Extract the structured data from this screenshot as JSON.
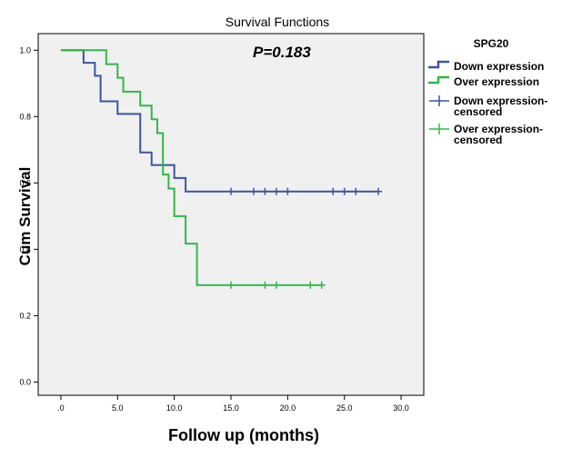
{
  "chart_data": {
    "type": "line",
    "title": "Survival Functions",
    "annotation": "P=0.183",
    "xlabel": "Follow up (months)",
    "ylabel": "Cum Survival",
    "xlim": [
      -2,
      32
    ],
    "ylim": [
      -0.04,
      1.05
    ],
    "x_ticks": [
      0,
      5,
      10,
      15,
      20,
      25,
      30
    ],
    "x_tick_labels": [
      ".0",
      "5.0",
      "10.0",
      "15.0",
      "20.0",
      "25.0",
      "30.0"
    ],
    "y_ticks": [
      0.0,
      0.2,
      0.4,
      0.6,
      0.8,
      1.0
    ],
    "y_tick_labels": [
      "0.0",
      "0.2",
      "0.4",
      "0.6",
      "0.8",
      "1.0"
    ],
    "grid": false,
    "legend_title": "SPG20",
    "legend_position": "right",
    "legend": [
      {
        "label": "Down expression",
        "kind": "step",
        "color": "#3a54a4"
      },
      {
        "label": "Over expression",
        "kind": "step",
        "color": "#2fb847"
      },
      {
        "label": "Down expression-censored",
        "kind": "censor",
        "color": "#3a54a4"
      },
      {
        "label": "Over expression-censored",
        "kind": "censor",
        "color": "#2fb847"
      }
    ],
    "series": [
      {
        "name": "Down expression",
        "color": "#3a54a4",
        "x": [
          0,
          2,
          3,
          3.5,
          5,
          7,
          8,
          10,
          11,
          28
        ],
        "y": [
          1.0,
          0.962,
          0.923,
          0.846,
          0.808,
          0.692,
          0.654,
          0.615,
          0.574,
          0.574
        ],
        "censored": [
          {
            "x": 15,
            "y": 0.574
          },
          {
            "x": 17,
            "y": 0.574
          },
          {
            "x": 18,
            "y": 0.574
          },
          {
            "x": 19,
            "y": 0.574
          },
          {
            "x": 20,
            "y": 0.574
          },
          {
            "x": 24,
            "y": 0.574
          },
          {
            "x": 25,
            "y": 0.574
          },
          {
            "x": 26,
            "y": 0.574
          },
          {
            "x": 28,
            "y": 0.574
          }
        ]
      },
      {
        "name": "Over expression",
        "color": "#2fb847",
        "x": [
          0,
          4,
          5,
          5.5,
          7,
          8,
          8.5,
          9,
          9.5,
          10,
          11,
          12,
          23
        ],
        "y": [
          1.0,
          0.958,
          0.917,
          0.875,
          0.833,
          0.792,
          0.75,
          0.625,
          0.583,
          0.5,
          0.417,
          0.292,
          0.292
        ],
        "censored": [
          {
            "x": 15,
            "y": 0.292
          },
          {
            "x": 18,
            "y": 0.292
          },
          {
            "x": 19,
            "y": 0.292
          },
          {
            "x": 22,
            "y": 0.292
          },
          {
            "x": 23,
            "y": 0.292
          }
        ]
      }
    ]
  }
}
